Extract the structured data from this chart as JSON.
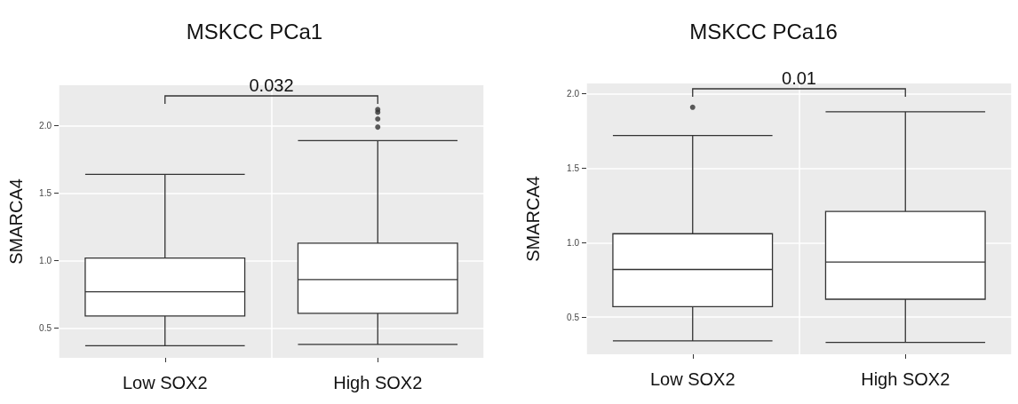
{
  "chart_data": [
    {
      "type": "box",
      "title": "MSKCC PCa1",
      "ylabel": "SMARCA4",
      "categories": [
        "Low SOX2",
        "High SOX2"
      ],
      "ylim": [
        0.28,
        2.3
      ],
      "yticks": [
        {
          "value": 0.5,
          "label": "0.5"
        },
        {
          "value": 1,
          "label": "1.0"
        },
        {
          "value": 1.5,
          "label": "1.5"
        },
        {
          "value": 2,
          "label": "2.0"
        }
      ],
      "grid": true,
      "annotations": [
        "0.032"
      ],
      "series": [
        {
          "color": "#333333",
          "boxes": [
            {
              "low": 0.37,
              "q1": 0.59,
              "median": 0.77,
              "q3": 1.02,
              "high": 1.64
            },
            {
              "low": 0.38,
              "q1": 0.61,
              "median": 0.86,
              "q3": 1.13,
              "high": 1.89,
              "outliers": [
                1.99,
                2.05,
                2.1,
                2.12
              ]
            }
          ]
        }
      ]
    },
    {
      "type": "box",
      "title": "MSKCC PCa16",
      "ylabel": "SMARCA4",
      "categories": [
        "Low SOX2",
        "High SOX2"
      ],
      "ylim": [
        0.25,
        2.07
      ],
      "yticks": [
        {
          "value": 0.5,
          "label": "0.5"
        },
        {
          "value": 1,
          "label": "1.0"
        },
        {
          "value": 1.5,
          "label": "1.5"
        },
        {
          "value": 2,
          "label": "2.0"
        }
      ],
      "grid": true,
      "annotations": [
        "0.01"
      ],
      "series": [
        {
          "color": "#333333",
          "boxes": [
            {
              "low": 0.34,
              "q1": 0.57,
              "median": 0.82,
              "q3": 1.06,
              "high": 1.72,
              "outliers": [
                1.91
              ]
            },
            {
              "low": 0.33,
              "q1": 0.62,
              "median": 0.87,
              "q3": 1.21,
              "high": 1.88
            }
          ]
        }
      ]
    }
  ]
}
